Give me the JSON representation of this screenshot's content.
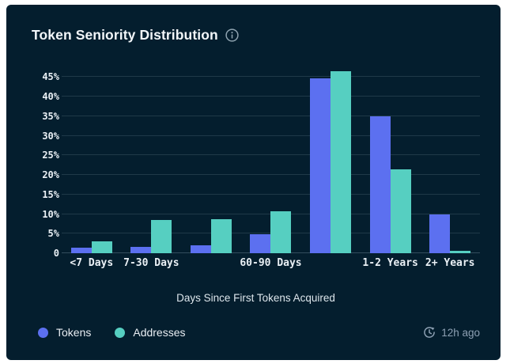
{
  "header": {
    "info_icon": "info-circle"
  },
  "chart_data": {
    "type": "bar",
    "title": "Token Seniority Distribution",
    "xlabel": "Days Since First Tokens Acquired",
    "ylabel": "",
    "categories": [
      "<7 Days",
      "7-30 Days",
      "",
      "60-90 Days",
      "",
      "1-2 Years",
      "2+ Years"
    ],
    "series": [
      {
        "name": "Tokens",
        "color": "#5c70f0",
        "values": [
          1.5,
          1.7,
          2.1,
          4.8,
          44.6,
          35.0,
          10.0
        ]
      },
      {
        "name": "Addresses",
        "color": "#56cfc1",
        "values": [
          3.0,
          8.4,
          8.7,
          10.7,
          46.4,
          21.5,
          0.7
        ]
      }
    ],
    "ylim": [
      0,
      47.7
    ],
    "yticks": [
      {
        "value": 0,
        "label": "0"
      },
      {
        "value": 5,
        "label": "5%"
      },
      {
        "value": 10,
        "label": "10%"
      },
      {
        "value": 15,
        "label": "15%"
      },
      {
        "value": 20,
        "label": "20%"
      },
      {
        "value": 25,
        "label": "25%"
      },
      {
        "value": 30,
        "label": "30%"
      },
      {
        "value": 35,
        "label": "35%"
      },
      {
        "value": 40,
        "label": "40%"
      },
      {
        "value": 45,
        "label": "45%"
      }
    ],
    "grid": true,
    "legend_position": "bottom-left"
  },
  "footer": {
    "updated": "12h ago"
  },
  "colors": {
    "card_bg": "#041e2e",
    "page_bg": "#ffffff",
    "title_text": "#f2f6f9",
    "tick_text": "#eaf0f5",
    "axis_label_text": "#dde6ec",
    "muted_text": "#8da0b3",
    "gridline": "rgba(173,199,214,0.16)",
    "tokens": "#5c70f0",
    "addresses": "#56cfc1"
  }
}
